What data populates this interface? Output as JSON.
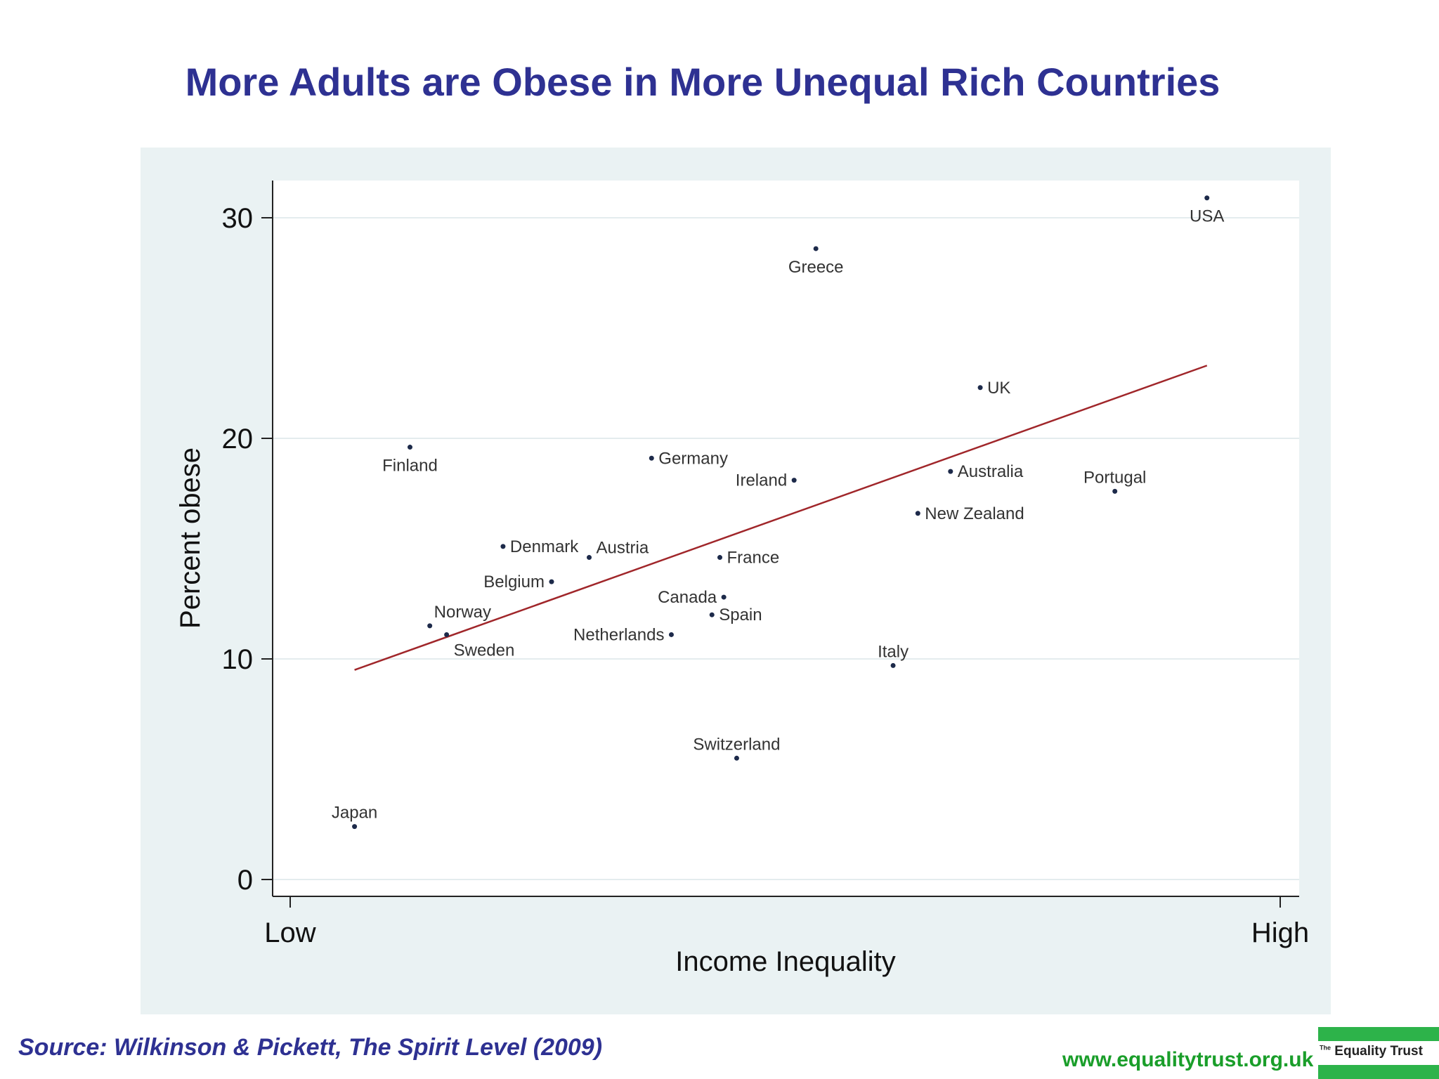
{
  "page": {
    "title": "More Adults are Obese in More Unequal Rich Countries",
    "source": "Source: Wilkinson & Pickett, The Spirit Level (2009)",
    "website": "www.equalitytrust.org.uk",
    "logo_prefix": "The",
    "logo_text": "Equality Trust"
  },
  "colors": {
    "title": "#2e3192",
    "fit_line": "#a0262a",
    "panel_bg": "#eaf2f3",
    "plot_bg": "#ffffff",
    "website": "#1a9e2a",
    "logo_green": "#2db34a"
  },
  "chart_data": {
    "type": "scatter",
    "title": "More Adults are Obese in More Unequal Rich Countries",
    "xlabel": "Income Inequality",
    "ylabel": "Percent obese",
    "xlim": [
      0,
      100
    ],
    "ylim": [
      -0.8,
      31.8
    ],
    "x_ticks": [
      {
        "value": 0,
        "label": "Low"
      },
      {
        "value": 100,
        "label": "High"
      }
    ],
    "y_ticks": [
      0,
      10,
      20,
      30
    ],
    "grid": true,
    "points": [
      {
        "name": "USA",
        "x": 92.6,
        "y": 30.9
      },
      {
        "name": "Greece",
        "x": 53.1,
        "y": 28.6
      },
      {
        "name": "UK",
        "x": 69.7,
        "y": 22.3
      },
      {
        "name": "Finland",
        "x": 12.1,
        "y": 19.6
      },
      {
        "name": "Germany",
        "x": 36.5,
        "y": 19.1
      },
      {
        "name": "Ireland",
        "x": 50.9,
        "y": 18.1
      },
      {
        "name": "Australia",
        "x": 66.7,
        "y": 18.5
      },
      {
        "name": "Portugal",
        "x": 83.3,
        "y": 17.6
      },
      {
        "name": "New Zealand",
        "x": 63.4,
        "y": 16.6
      },
      {
        "name": "Denmark",
        "x": 21.5,
        "y": 15.1
      },
      {
        "name": "Austria",
        "x": 30.2,
        "y": 14.6
      },
      {
        "name": "France",
        "x": 43.4,
        "y": 14.6
      },
      {
        "name": "Belgium",
        "x": 26.4,
        "y": 13.5
      },
      {
        "name": "Canada",
        "x": 43.8,
        "y": 12.8
      },
      {
        "name": "Spain",
        "x": 42.6,
        "y": 12.0
      },
      {
        "name": "Norway",
        "x": 14.1,
        "y": 11.5
      },
      {
        "name": "Sweden",
        "x": 15.8,
        "y": 11.1
      },
      {
        "name": "Netherlands",
        "x": 38.5,
        "y": 11.1
      },
      {
        "name": "Italy",
        "x": 60.9,
        "y": 9.7
      },
      {
        "name": "Switzerland",
        "x": 45.1,
        "y": 5.5
      },
      {
        "name": "Japan",
        "x": 6.5,
        "y": 2.4
      }
    ],
    "fit_line": {
      "x": [
        6.5,
        92.6
      ],
      "y": [
        9.5,
        23.3
      ]
    }
  }
}
